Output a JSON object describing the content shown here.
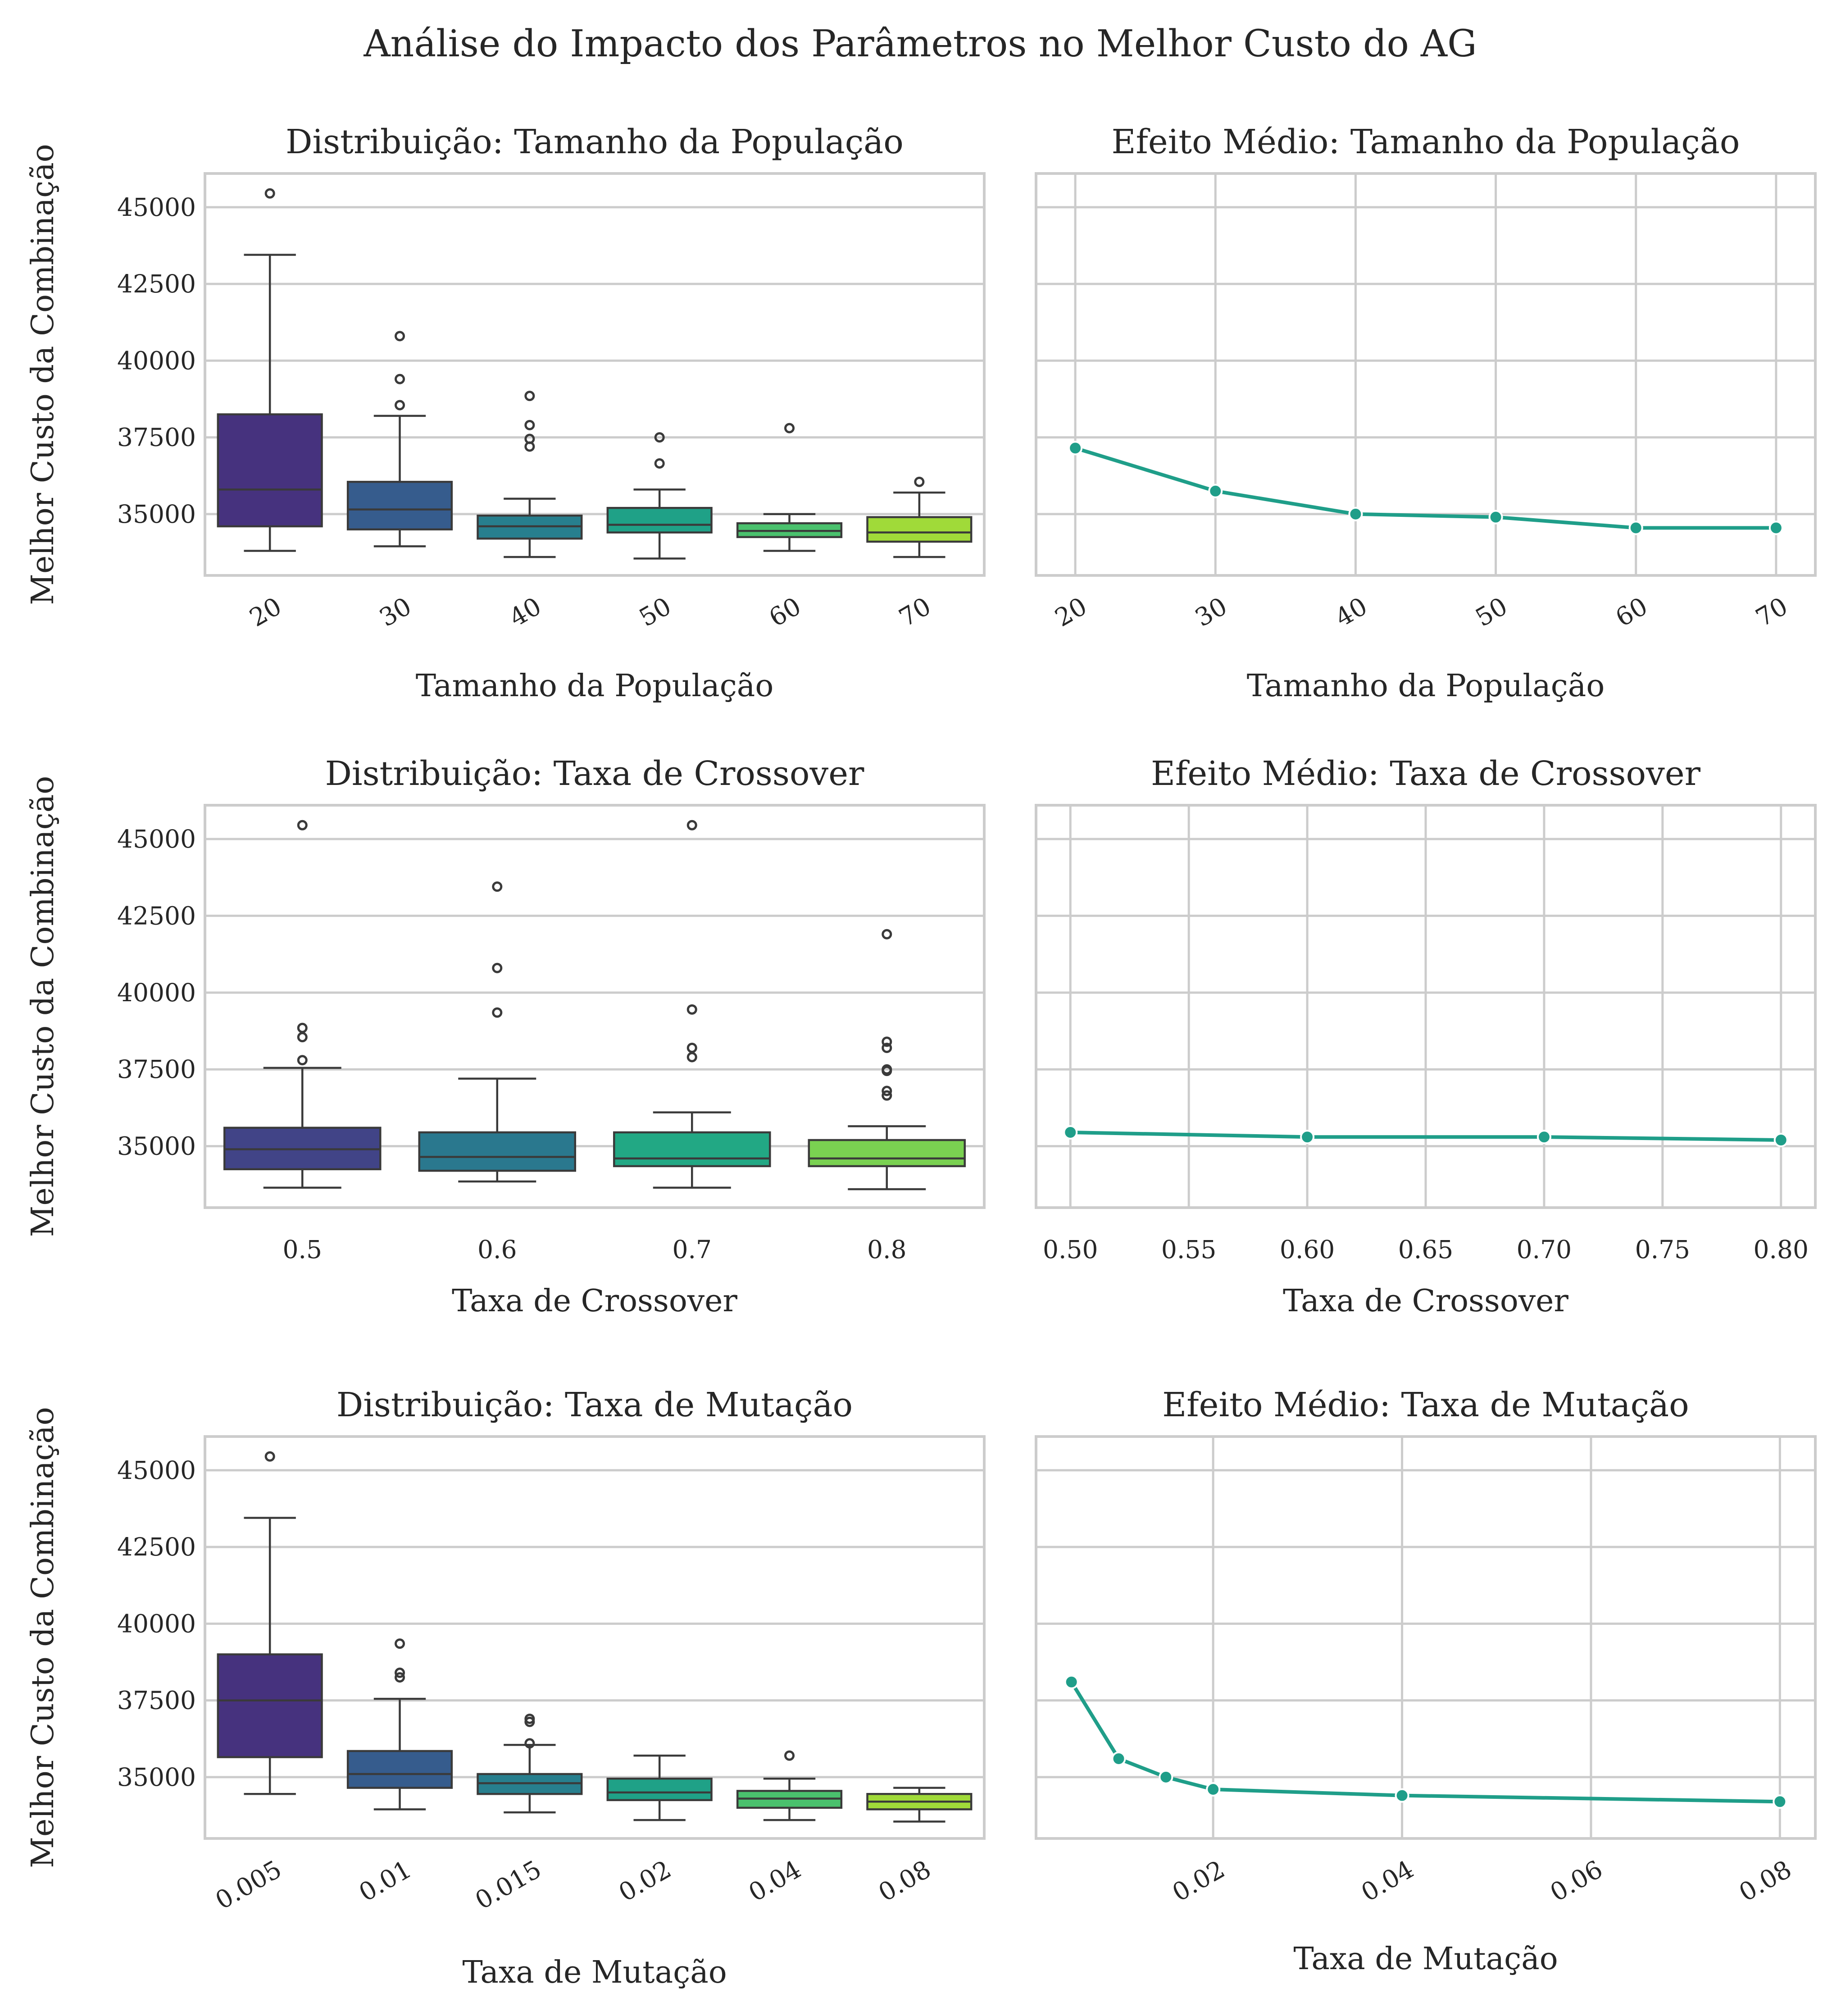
{
  "suptitle": "Análise do Impacto dos Parâmetros no Melhor Custo do AG",
  "palettes": {
    "six": [
      "#46327e",
      "#365c8d",
      "#277f8e",
      "#1fa187",
      "#4ac16d",
      "#a0da39"
    ],
    "four": [
      "#414487",
      "#2a788e",
      "#22a884",
      "#7ad151"
    ],
    "mean_line": "#1f9e89"
  },
  "chart_data": [
    {
      "type": "box",
      "title": "Distribuição: Tamanho da População",
      "xlabel": "Tamanho da População",
      "ylabel": "Melhor Custo da Combinação",
      "ylim": [
        33000,
        46100
      ],
      "yticks": [
        35000,
        37500,
        40000,
        42500,
        45000
      ],
      "categories": [
        "20",
        "30",
        "40",
        "50",
        "60",
        "70"
      ],
      "boxes": [
        {
          "whislo": 33800,
          "q1": 34600,
          "med": 35800,
          "q3": 38250,
          "whishi": 43450,
          "fliers": [
            45450
          ]
        },
        {
          "whislo": 33950,
          "q1": 34500,
          "med": 35150,
          "q3": 36050,
          "whishi": 38200,
          "fliers": [
            38550,
            39400,
            40800
          ]
        },
        {
          "whislo": 33600,
          "q1": 34200,
          "med": 34600,
          "q3": 34950,
          "whishi": 35500,
          "fliers": [
            37200,
            37450,
            37900,
            38850
          ]
        },
        {
          "whislo": 33550,
          "q1": 34400,
          "med": 34650,
          "q3": 35200,
          "whishi": 35800,
          "fliers": [
            36650,
            37500
          ]
        },
        {
          "whislo": 33800,
          "q1": 34250,
          "med": 34450,
          "q3": 34700,
          "whishi": 35000,
          "fliers": [
            37800
          ]
        },
        {
          "whislo": 33600,
          "q1": 34100,
          "med": 34400,
          "q3": 34900,
          "whishi": 35700,
          "fliers": [
            36050
          ]
        }
      ]
    },
    {
      "type": "line",
      "title": "Efeito Médio: Tamanho da População",
      "xlabel": "Tamanho da População",
      "xlim": [
        17.2,
        72.8
      ],
      "ylim": [
        33000,
        46100
      ],
      "xticks": [
        "20",
        "30",
        "40",
        "50",
        "60",
        "70"
      ],
      "x": [
        20,
        30,
        40,
        50,
        60,
        70
      ],
      "y": [
        37150,
        35750,
        35000,
        34900,
        34550,
        34550
      ]
    },
    {
      "type": "box",
      "title": "Distribuição: Taxa de Crossover",
      "xlabel": "Taxa de Crossover",
      "ylabel": "Melhor Custo da Combinação",
      "ylim": [
        33000,
        46100
      ],
      "yticks": [
        35000,
        37500,
        40000,
        42500,
        45000
      ],
      "categories": [
        "0.5",
        "0.6",
        "0.7",
        "0.8"
      ],
      "boxes": [
        {
          "whislo": 33650,
          "q1": 34250,
          "med": 34900,
          "q3": 35600,
          "whishi": 37550,
          "fliers": [
            37800,
            38550,
            38850,
            45450
          ]
        },
        {
          "whislo": 33850,
          "q1": 34200,
          "med": 34650,
          "q3": 35450,
          "whishi": 37200,
          "fliers": [
            39350,
            40800,
            43450
          ]
        },
        {
          "whislo": 33650,
          "q1": 34350,
          "med": 34600,
          "q3": 35450,
          "whishi": 36100,
          "fliers": [
            37900,
            38200,
            39450,
            45450
          ]
        },
        {
          "whislo": 33600,
          "q1": 34350,
          "med": 34600,
          "q3": 35200,
          "whishi": 35650,
          "fliers": [
            36650,
            36800,
            37450,
            37500,
            38200,
            38400,
            41900
          ]
        }
      ]
    },
    {
      "type": "line",
      "title": "Efeito Médio: Taxa de Crossover",
      "xlabel": "Taxa de Crossover",
      "xlim": [
        0.4855,
        0.8145
      ],
      "ylim": [
        33000,
        46100
      ],
      "xticks": [
        "0.50",
        "0.55",
        "0.60",
        "0.65",
        "0.70",
        "0.75",
        "0.80"
      ],
      "x": [
        0.5,
        0.6,
        0.7,
        0.8
      ],
      "y": [
        35450,
        35300,
        35300,
        35200
      ]
    },
    {
      "type": "box",
      "title": "Distribuição: Taxa de Mutação",
      "xlabel": "Taxa de Mutação",
      "ylabel": "Melhor Custo da Combinação",
      "ylim": [
        33000,
        46100
      ],
      "yticks": [
        35000,
        37500,
        40000,
        42500,
        45000
      ],
      "categories": [
        "0.005",
        "0.01",
        "0.015",
        "0.02",
        "0.04",
        "0.08"
      ],
      "boxes": [
        {
          "whislo": 34450,
          "q1": 35650,
          "med": 37500,
          "q3": 39000,
          "whishi": 43450,
          "fliers": [
            45450
          ]
        },
        {
          "whislo": 33950,
          "q1": 34650,
          "med": 35100,
          "q3": 35850,
          "whishi": 37550,
          "fliers": [
            38250,
            38400,
            39350
          ]
        },
        {
          "whislo": 33850,
          "q1": 34450,
          "med": 34800,
          "q3": 35100,
          "whishi": 36050,
          "fliers": [
            36100,
            36800,
            36900
          ]
        },
        {
          "whislo": 33600,
          "q1": 34250,
          "med": 34500,
          "q3": 34950,
          "whishi": 35700,
          "fliers": []
        },
        {
          "whislo": 33600,
          "q1": 34000,
          "med": 34300,
          "q3": 34550,
          "whishi": 34950,
          "fliers": [
            35700
          ]
        },
        {
          "whislo": 33550,
          "q1": 33950,
          "med": 34200,
          "q3": 34450,
          "whishi": 34650,
          "fliers": []
        }
      ]
    },
    {
      "type": "line",
      "title": "Efeito Médio: Taxa de Mutação",
      "xlabel": "Taxa de Mutação",
      "xlim": [
        0.00125,
        0.08375
      ],
      "ylim": [
        33000,
        46100
      ],
      "xticks": [
        "0.02",
        "0.04",
        "0.06",
        "0.08"
      ],
      "x": [
        0.005,
        0.01,
        0.015,
        0.02,
        0.04,
        0.08
      ],
      "y": [
        38100,
        35600,
        35000,
        34600,
        34400,
        34200
      ]
    }
  ]
}
